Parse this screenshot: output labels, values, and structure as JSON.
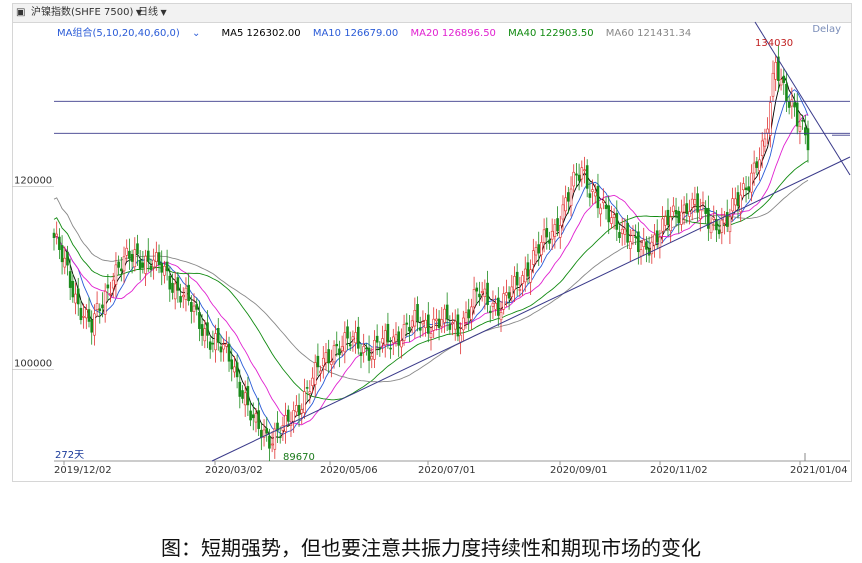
{
  "header": {
    "instrument": "沪镍指数(SHFE 7500)",
    "period": "日线"
  },
  "ma_legend": {
    "group": "MA组合(5,10,20,40,60,0)",
    "items": [
      {
        "label": "MA5 126302.00",
        "color": "#000000"
      },
      {
        "label": "MA10 126679.00",
        "color": "#2a5bd7"
      },
      {
        "label": "MA20 126896.50",
        "color": "#e020d0"
      },
      {
        "label": "MA40 122903.50",
        "color": "#108a10"
      },
      {
        "label": "MA60 121431.34",
        "color": "#888888"
      }
    ]
  },
  "delay": "Delay",
  "caption": "图：短期强势，但也要注意共振力度持续性和期现市场的变化",
  "colors": {
    "up": "#e03030",
    "down": "#1a8a1a",
    "ma5": "#000000",
    "ma10": "#2a5bd7",
    "ma20": "#e020d0",
    "ma40": "#108a10",
    "ma60": "#888888",
    "trend": "#3a3a8a"
  },
  "chart_data": {
    "type": "candlestick",
    "ylim": [
      90000,
      136000
    ],
    "y_ticks": [
      100000,
      120000
    ],
    "x_ticks": [
      "2019/12/02",
      "2020/03/02",
      "2020/05/06",
      "2020/07/01",
      "2020/09/01",
      "2020/11/02",
      "2021/01/04"
    ],
    "annotations": {
      "high": "134030",
      "low": "89670",
      "count": "272天"
    },
    "horizontal_levels": [
      129300,
      125800,
      125600
    ],
    "close_anchors": [
      {
        "t": 0,
        "v": 114400
      },
      {
        "t": 8,
        "v": 108000
      },
      {
        "t": 14,
        "v": 104400
      },
      {
        "t": 22,
        "v": 110500
      },
      {
        "t": 30,
        "v": 112600
      },
      {
        "t": 40,
        "v": 111000
      },
      {
        "t": 48,
        "v": 108000
      },
      {
        "t": 58,
        "v": 103400
      },
      {
        "t": 66,
        "v": 101000
      },
      {
        "t": 74,
        "v": 94000
      },
      {
        "t": 80,
        "v": 92700
      },
      {
        "t": 86,
        "v": 93500
      },
      {
        "t": 95,
        "v": 98400
      },
      {
        "t": 104,
        "v": 102500
      },
      {
        "t": 112,
        "v": 103000
      },
      {
        "t": 118,
        "v": 102000
      },
      {
        "t": 126,
        "v": 103500
      },
      {
        "t": 134,
        "v": 105000
      },
      {
        "t": 144,
        "v": 105200
      },
      {
        "t": 150,
        "v": 104600
      },
      {
        "t": 158,
        "v": 108300
      },
      {
        "t": 166,
        "v": 106700
      },
      {
        "t": 176,
        "v": 111300
      },
      {
        "t": 186,
        "v": 115600
      },
      {
        "t": 196,
        "v": 122000
      },
      {
        "t": 204,
        "v": 117000
      },
      {
        "t": 210,
        "v": 115800
      },
      {
        "t": 218,
        "v": 112800
      },
      {
        "t": 226,
        "v": 115500
      },
      {
        "t": 236,
        "v": 118300
      },
      {
        "t": 243,
        "v": 116300
      },
      {
        "t": 250,
        "v": 116000
      },
      {
        "t": 258,
        "v": 121000
      },
      {
        "t": 264,
        "v": 124200
      },
      {
        "t": 268,
        "v": 134000
      },
      {
        "t": 272,
        "v": 130000
      },
      {
        "t": 276,
        "v": 126800
      },
      {
        "t": 280,
        "v": 125300
      }
    ]
  }
}
